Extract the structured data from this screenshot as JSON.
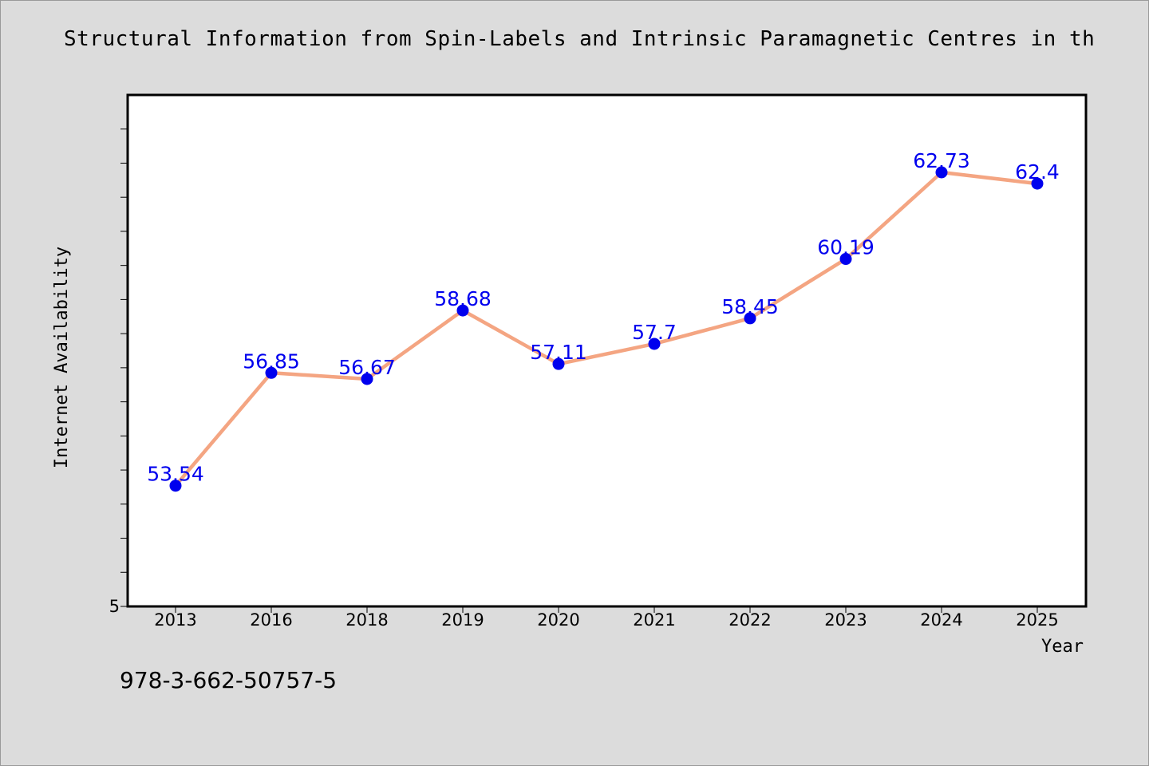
{
  "title": "Structural Information from Spin-Labels and Intrinsic Paramagnetic Centres in th",
  "footer_text": "978-3-662-50757-5",
  "chart_data": {
    "type": "line",
    "title": "Structural Information from Spin-Labels and Intrinsic Paramagnetic Centres in th",
    "xlabel": "Year",
    "ylabel": "Internet Availability",
    "categories": [
      "2013",
      "2016",
      "2018",
      "2019",
      "2020",
      "2021",
      "2022",
      "2023",
      "2024",
      "2025"
    ],
    "series": [
      {
        "values": [
          53.54,
          56.85,
          56.67,
          58.68,
          57.11,
          57.7,
          58.45,
          60.19,
          62.73,
          62.4
        ],
        "data_labels": [
          "53.54",
          "56.85",
          "56.67",
          "58.68",
          "57.11",
          "57.7",
          "58.45",
          "60.19",
          "62.73",
          "62.4"
        ]
      }
    ],
    "ylim": [
      50,
      65
    ],
    "y_tick_values": [
      50,
      51,
      52,
      53,
      54,
      55,
      56,
      57,
      58,
      59,
      60,
      61,
      62,
      63,
      64
    ],
    "y_tick_labels_shown": [
      "5"
    ],
    "grid": false,
    "legend": "none",
    "colors": {
      "line": "#f4a582",
      "marker": "#0000ee",
      "label": "#0000ee",
      "background": "#dcdcdc",
      "plot_background": "#ffffff"
    }
  }
}
